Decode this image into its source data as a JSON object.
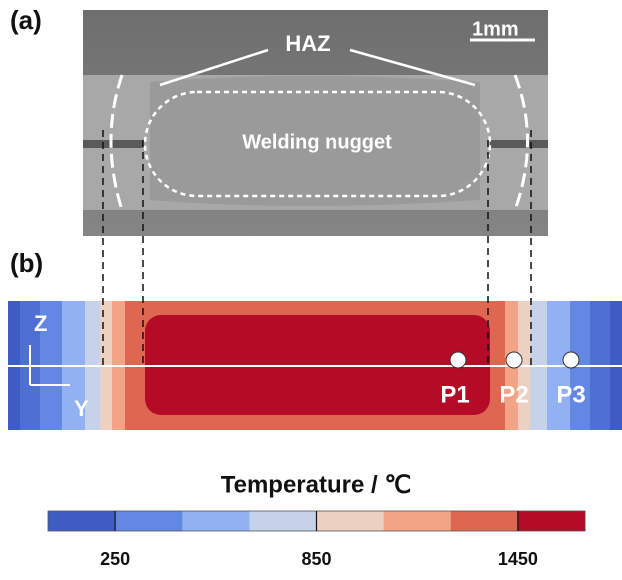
{
  "panel_a": {
    "label": "(a)",
    "scale_bar": "1mm",
    "haz": "HAZ",
    "nugget": "Welding nugget"
  },
  "panel_b": {
    "label": "(b)",
    "axis_z": "Z",
    "axis_y": "Y",
    "points": [
      "P1",
      "P2",
      "P3"
    ]
  },
  "colorbar": {
    "title": "Temperature / ℃",
    "range": [
      50,
      1650
    ],
    "ticks": [
      250,
      850,
      1450
    ],
    "colors": [
      "#3f5cc4",
      "#6388e4",
      "#92b1f2",
      "#c5d2ea",
      "#ecd0c2",
      "#f3a486",
      "#de6752",
      "#b40b26"
    ]
  }
}
